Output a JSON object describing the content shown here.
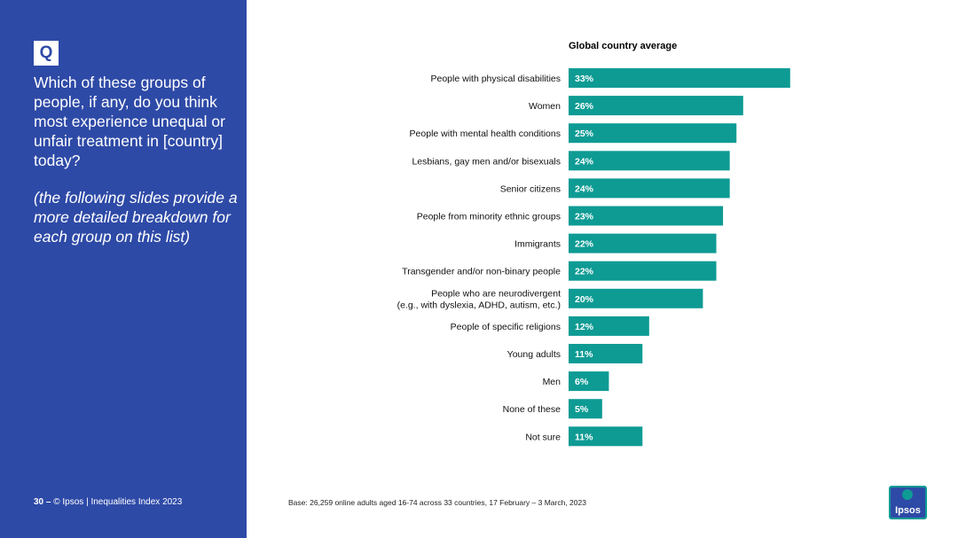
{
  "sidebar": {
    "q_label": "Q",
    "question": "Which of these groups of people, if any, do you think most experience unequal or unfair treatment in [country] today?",
    "note": "(the following slides provide a more detailed breakdown for each group on this list)",
    "page_number": "30 –",
    "copyright": "© Ipsos | Inequalities Index 2023"
  },
  "footer": {
    "base": "Base: 26,259 online adults aged 16-74 across 33 countries, 17 February – 3 March, 2023"
  },
  "logo": {
    "text": "Ipsos"
  },
  "colors": {
    "sidebar": "#2e4aa7",
    "bar": "#0e9b94",
    "bar_label": "#ffffff"
  },
  "chart_data": {
    "type": "bar",
    "orientation": "horizontal",
    "title": "Global country average",
    "unit": "%",
    "categories": [
      [
        "People with physical disabilities"
      ],
      [
        "Women"
      ],
      [
        "People with mental health conditions"
      ],
      [
        "Lesbians, gay men and/or bisexuals"
      ],
      [
        "Senior citizens"
      ],
      [
        "People from minority ethnic groups"
      ],
      [
        "Immigrants"
      ],
      [
        "Transgender and/or non-binary people"
      ],
      [
        "People who are neurodivergent",
        "(e.g., with dyslexia, ADHD, autism, etc.)"
      ],
      [
        "People of specific religions"
      ],
      [
        "Young adults"
      ],
      [
        "Men"
      ],
      [
        "None of these"
      ],
      [
        "Not sure"
      ]
    ],
    "values": [
      33,
      26,
      25,
      24,
      24,
      23,
      22,
      22,
      20,
      12,
      11,
      6,
      5,
      11
    ]
  }
}
